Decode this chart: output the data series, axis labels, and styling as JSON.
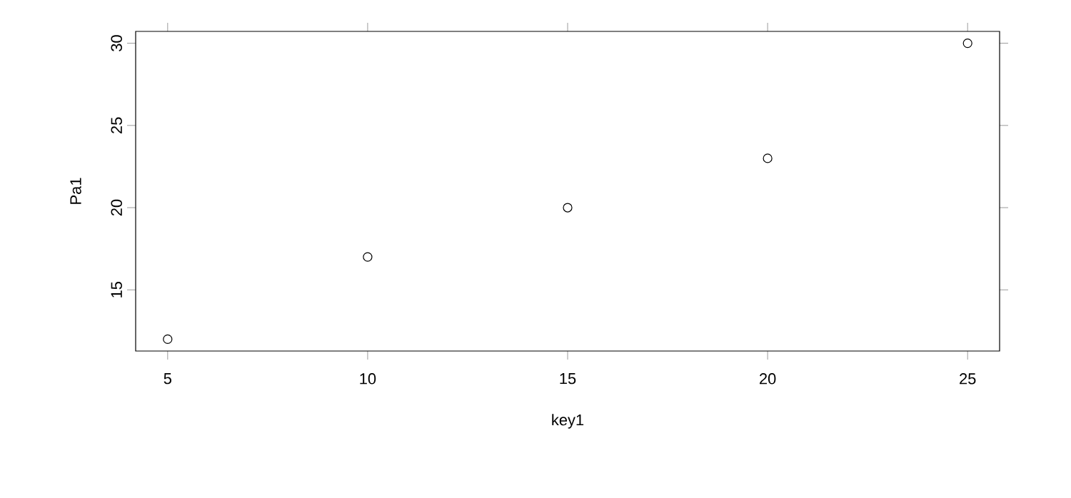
{
  "chart_data": {
    "type": "scatter",
    "xlabel": "key1",
    "ylabel": "Pa1",
    "x": [
      5,
      10,
      15,
      20,
      25
    ],
    "values": [
      12,
      17,
      20,
      23,
      30
    ],
    "color": "#000000",
    "marker": "circle",
    "xlim": [
      4.2,
      25.8
    ],
    "ylim": [
      11.28,
      30.72
    ],
    "xticks": [
      5,
      10,
      15,
      20,
      25
    ],
    "yticks": [
      15,
      20,
      25,
      30
    ]
  }
}
